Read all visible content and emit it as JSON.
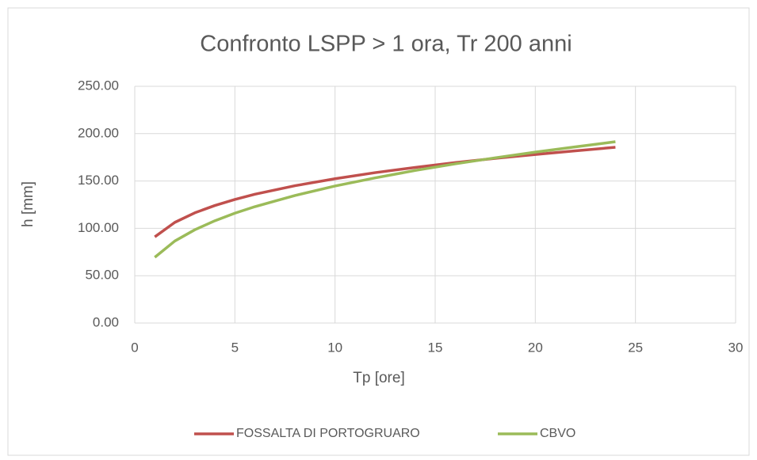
{
  "chart_data": {
    "type": "line",
    "title": "Confronto LSPP > 1 ora, Tr 200 anni",
    "x_label": "Tp [ore]",
    "y_label": "h [mm]",
    "x": [
      1,
      2,
      3,
      4,
      5,
      6,
      8,
      10,
      12,
      14,
      16,
      18,
      20,
      22,
      24
    ],
    "series": [
      {
        "name": "FOSSALTA DI PORTOGRUARO",
        "color": "#c0504d",
        "values": [
          91,
          106.3,
          116.4,
          124.1,
          130.5,
          136.0,
          145.0,
          152.4,
          158.8,
          164.3,
          169.4,
          173.9,
          178.0,
          181.9,
          185.6
        ]
      },
      {
        "name": "CBVO",
        "color": "#9bbb59",
        "values": [
          69.4,
          86.6,
          98.5,
          108.0,
          116.0,
          122.9,
          134.7,
          144.7,
          153.3,
          161.1,
          168.1,
          174.5,
          180.5,
          186.0,
          191.5
        ]
      }
    ],
    "xlim": [
      0,
      30
    ],
    "xticks": [
      0,
      5,
      10,
      15,
      20,
      25,
      30
    ],
    "ylim": [
      0,
      250
    ],
    "yticks": [
      {
        "value": 0,
        "label": "0.00"
      },
      {
        "value": 50,
        "label": "50.00"
      },
      {
        "value": 100,
        "label": "100.00"
      },
      {
        "value": 150,
        "label": "150.00"
      },
      {
        "value": 200,
        "label": "200.00"
      },
      {
        "value": 250,
        "label": "250.00"
      }
    ],
    "grid": true,
    "legend": "bottom"
  }
}
